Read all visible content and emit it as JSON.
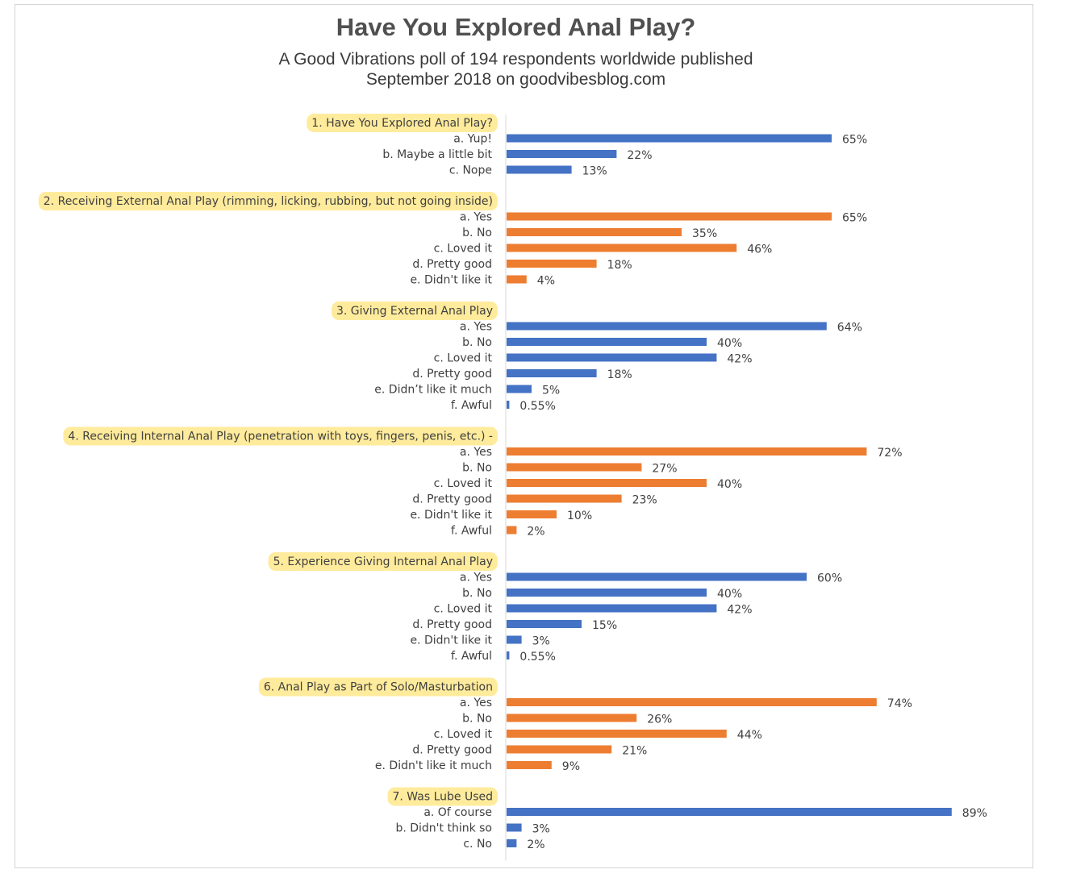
{
  "chart_data": {
    "type": "bar",
    "orientation": "horizontal",
    "title": "Have You Explored Anal Play?",
    "subtitle_lines": [
      "A Good Vibrations poll of 194 respondents worldwide published",
      "September 2018 on goodvibesblog.com"
    ],
    "grid": false,
    "legend": "none",
    "xlim": [
      0,
      100
    ],
    "colors": {
      "blue": "#4472C4",
      "orange": "#ED7D31",
      "highlight": "#FFEB9C"
    },
    "groups": [
      {
        "heading": "1. Have You Explored Anal Play?",
        "color": "blue",
        "items": [
          {
            "label": "a. Yup!",
            "value": 65,
            "value_label": "65%"
          },
          {
            "label": "b. Maybe a little bit",
            "value": 22,
            "value_label": "22%"
          },
          {
            "label": "c. Nope",
            "value": 13,
            "value_label": "13%"
          }
        ]
      },
      {
        "heading": "2. Receiving External Anal Play (rimming, licking, rubbing, but not going inside)",
        "color": "orange",
        "items": [
          {
            "label": "a. Yes",
            "value": 65,
            "value_label": "65%"
          },
          {
            "label": "b. No",
            "value": 35,
            "value_label": "35%"
          },
          {
            "label": "c. Loved it",
            "value": 46,
            "value_label": "46%"
          },
          {
            "label": "d. Pretty good",
            "value": 18,
            "value_label": "18%"
          },
          {
            "label": "e. Didn't like it",
            "value": 4,
            "value_label": "4%"
          }
        ]
      },
      {
        "heading": "3. Giving External Anal Play",
        "color": "blue",
        "items": [
          {
            "label": "a. Yes",
            "value": 64,
            "value_label": "64%"
          },
          {
            "label": "b. No",
            "value": 40,
            "value_label": "40%"
          },
          {
            "label": "c. Loved it",
            "value": 42,
            "value_label": "42%"
          },
          {
            "label": "d. Pretty good",
            "value": 18,
            "value_label": "18%"
          },
          {
            "label": "e. Didn’t like it much",
            "value": 5,
            "value_label": "5%"
          },
          {
            "label": "f. Awful",
            "value": 0.55,
            "value_label": "0.55%"
          }
        ]
      },
      {
        "heading": "4. Receiving Internal Anal Play (penetration with toys, fingers, penis, etc.) -",
        "color": "orange",
        "items": [
          {
            "label": "a. Yes",
            "value": 72,
            "value_label": "72%"
          },
          {
            "label": "b. No",
            "value": 27,
            "value_label": "27%"
          },
          {
            "label": "c. Loved it",
            "value": 40,
            "value_label": "40%"
          },
          {
            "label": "d. Pretty good",
            "value": 23,
            "value_label": "23%"
          },
          {
            "label": "e. Didn't like it",
            "value": 10,
            "value_label": "10%"
          },
          {
            "label": "f. Awful",
            "value": 2,
            "value_label": "2%"
          }
        ]
      },
      {
        "heading": "5. Experience Giving Internal Anal Play",
        "color": "blue",
        "items": [
          {
            "label": "a. Yes",
            "value": 60,
            "value_label": "60%"
          },
          {
            "label": "b. No",
            "value": 40,
            "value_label": "40%"
          },
          {
            "label": "c. Loved it",
            "value": 42,
            "value_label": "42%"
          },
          {
            "label": "d. Pretty good",
            "value": 15,
            "value_label": "15%"
          },
          {
            "label": "e. Didn't like it",
            "value": 3,
            "value_label": "3%"
          },
          {
            "label": "f. Awful",
            "value": 0.55,
            "value_label": "0.55%"
          }
        ]
      },
      {
        "heading": "6. Anal Play as Part of Solo/Masturbation",
        "color": "orange",
        "items": [
          {
            "label": "a. Yes",
            "value": 74,
            "value_label": "74%"
          },
          {
            "label": "b. No",
            "value": 26,
            "value_label": "26%"
          },
          {
            "label": "c. Loved it",
            "value": 44,
            "value_label": "44%"
          },
          {
            "label": "d. Pretty good",
            "value": 21,
            "value_label": "21%"
          },
          {
            "label": "e. Didn't like it much",
            "value": 9,
            "value_label": "9%"
          }
        ]
      },
      {
        "heading": "7. Was Lube Used",
        "color": "blue",
        "items": [
          {
            "label": "a. Of course",
            "value": 89,
            "value_label": "89%"
          },
          {
            "label": "b. Didn't think so",
            "value": 3,
            "value_label": "3%"
          },
          {
            "label": "c. No",
            "value": 2,
            "value_label": "2%"
          }
        ]
      }
    ]
  }
}
